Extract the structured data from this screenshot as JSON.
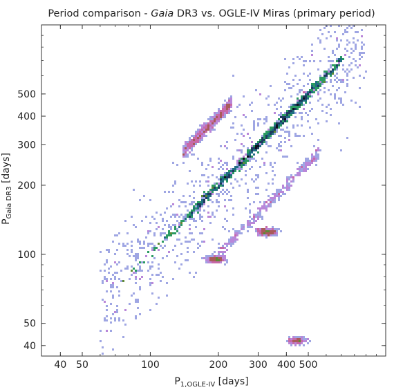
{
  "chart_data": {
    "type": "heatmap",
    "title": {
      "prefix": "Period comparison - ",
      "italic": "Gaia",
      "suffix": " DR3 vs. OGLE-IV Miras (primary period)"
    },
    "xlabel": {
      "main": "P",
      "sub": "1,OGLE-IV",
      "unit": " [days]"
    },
    "ylabel": {
      "main": "P",
      "sub": "Gaia DR3",
      "unit": " [days]"
    },
    "xscale": "log",
    "yscale": "log",
    "xlim": [
      33,
      1100
    ],
    "ylim": [
      36,
      1000
    ],
    "xticks": [
      {
        "value": 40,
        "label": "40"
      },
      {
        "value": 50,
        "label": "50"
      },
      {
        "value": 100,
        "label": "100"
      },
      {
        "value": 200,
        "label": "200"
      },
      {
        "value": 300,
        "label": "300"
      },
      {
        "value": 400,
        "label": "400"
      },
      {
        "value": 500,
        "label": "500"
      }
    ],
    "yticks": [
      {
        "value": 40,
        "label": "40"
      },
      {
        "value": 50,
        "label": "50"
      },
      {
        "value": 100,
        "label": "100"
      },
      {
        "value": 200,
        "label": "200"
      },
      {
        "value": 300,
        "label": "300"
      },
      {
        "value": 400,
        "label": "400"
      },
      {
        "value": 500,
        "label": "500"
      }
    ],
    "colormap": [
      "#b3c7ec",
      "#9fa6e3",
      "#b987d9",
      "#c769a8",
      "#a95b5a",
      "#5f8a35",
      "#2b9a62",
      "#1f6d82",
      "#1c3a60",
      "#0d1020"
    ],
    "features": [
      {
        "name": "1:1 relation",
        "ratio": 1.0,
        "x_range": [
          75,
          720
        ],
        "peak_x": 330,
        "density": 1.0
      },
      {
        "name": "2:1 alias",
        "ratio": 2.0,
        "x_range": [
          140,
          230
        ],
        "peak_x": 175,
        "density": 0.25
      },
      {
        "name": "1:2 alias",
        "ratio": 0.5,
        "x_range": [
          200,
          560
        ],
        "peak_x": 340,
        "density": 0.15
      },
      {
        "name": "group near (330, 125)",
        "x": 330,
        "y": 125,
        "density": 0.1
      },
      {
        "name": "group near (195, 95)",
        "x": 195,
        "y": 95,
        "density": 0.08
      },
      {
        "name": "group near (450, 42)",
        "x": 450,
        "y": 42,
        "density": 0.06
      }
    ],
    "grid": false,
    "legend": "none"
  }
}
